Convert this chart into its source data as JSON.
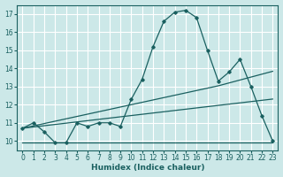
{
  "title": "",
  "xlabel": "Humidex (Indice chaleur)",
  "ylabel": "",
  "bg_color": "#cce8e8",
  "grid_color": "#ffffff",
  "line_color": "#1a6060",
  "xlim": [
    -0.5,
    23.5
  ],
  "ylim": [
    9.5,
    17.5
  ],
  "xticks": [
    0,
    1,
    2,
    3,
    4,
    5,
    6,
    7,
    8,
    9,
    10,
    11,
    12,
    13,
    14,
    15,
    16,
    17,
    18,
    19,
    20,
    21,
    22,
    23
  ],
  "yticks": [
    10,
    11,
    12,
    13,
    14,
    15,
    16,
    17
  ],
  "series_main": [
    10.7,
    11.0,
    10.5,
    9.9,
    9.9,
    11.0,
    10.8,
    11.0,
    11.0,
    10.8,
    12.3,
    13.4,
    15.2,
    16.6,
    17.1,
    17.2,
    16.8,
    15.0,
    13.3,
    13.8,
    14.5,
    13.0,
    11.4,
    10.0
  ],
  "series_flat": [
    9.9,
    9.9,
    9.9,
    9.9,
    9.9,
    9.9,
    9.9,
    9.9,
    9.9,
    9.9,
    9.9,
    9.9,
    9.9,
    9.9,
    9.9,
    9.9,
    9.9,
    9.9,
    9.9,
    9.9,
    9.9,
    9.9,
    9.9,
    9.9
  ],
  "series_line1": [
    10.7,
    10.77,
    10.84,
    10.91,
    10.98,
    11.05,
    11.12,
    11.19,
    11.26,
    11.33,
    11.4,
    11.47,
    11.54,
    11.61,
    11.68,
    11.75,
    11.82,
    11.89,
    11.96,
    12.03,
    12.1,
    12.17,
    12.24,
    12.31
  ],
  "series_line2": [
    10.7,
    10.83,
    10.96,
    11.09,
    11.22,
    11.35,
    11.48,
    11.61,
    11.74,
    11.87,
    12.0,
    12.13,
    12.26,
    12.39,
    12.52,
    12.65,
    12.78,
    12.91,
    13.04,
    13.2,
    13.36,
    13.52,
    13.68,
    13.84
  ]
}
